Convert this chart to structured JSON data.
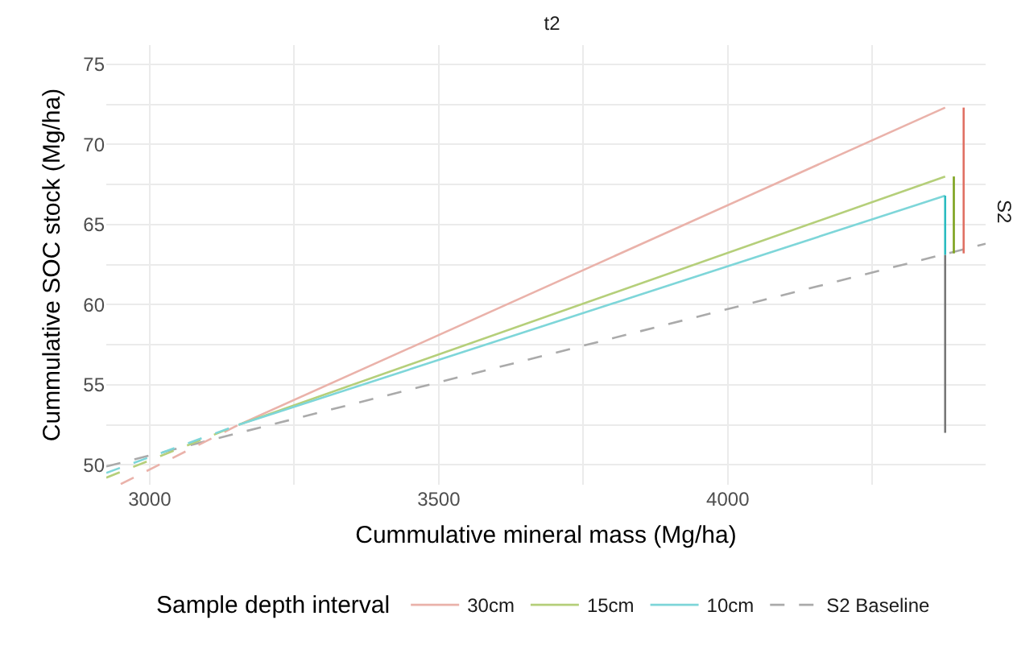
{
  "chart_data": {
    "type": "line",
    "title": "t2",
    "xlabel": "Cummulative mineral mass (Mg/ha)",
    "ylabel": "Cummulative SOC stock (Mg/ha)",
    "legend_title": "Sample depth interval",
    "annotations": [
      "S2"
    ],
    "series": [
      {
        "name": "30cm",
        "color": "#eab2aa",
        "line_style": "solid",
        "x": [
          3154,
          4376
        ],
        "values": [
          52.5,
          72.3
        ]
      },
      {
        "name": "15cm",
        "color": "#b5cf7a",
        "line_style": "solid",
        "x": [
          3154,
          4376
        ],
        "values": [
          52.5,
          68.0
        ]
      },
      {
        "name": "10cm",
        "color": "#7ed6d9",
        "line_style": "solid",
        "x": [
          3154,
          4376
        ],
        "values": [
          52.5,
          66.8
        ]
      },
      {
        "name": "S2 Baseline",
        "color": "#aaaaaa",
        "line_style": "dashed",
        "x": [
          2925,
          4446
        ],
        "values": [
          49.9,
          63.8
        ]
      },
      {
        "color": "#eab2aa",
        "line_style": "dashed",
        "x": [
          2950,
          3154
        ],
        "values": [
          48.8,
          52.5
        ]
      },
      {
        "color": "#b5cf7a",
        "line_style": "dashed",
        "x": [
          2925,
          3154
        ],
        "values": [
          49.2,
          52.5
        ]
      },
      {
        "color": "#7ed6d9",
        "line_style": "dashed",
        "x": [
          2925,
          3154
        ],
        "values": [
          49.5,
          52.5
        ]
      },
      {
        "color": "#e07063",
        "line_style": "solid",
        "x": [
          4408,
          4408
        ],
        "values": [
          63.2,
          72.3
        ]
      },
      {
        "color": "#7ca21c",
        "line_style": "solid",
        "x": [
          4391,
          4391
        ],
        "values": [
          63.2,
          68.0
        ]
      },
      {
        "color": "#2bbcc0",
        "line_style": "solid",
        "x": [
          4376,
          4376
        ],
        "values": [
          63.1,
          66.8
        ]
      },
      {
        "color": "#777777",
        "line_style": "solid",
        "x": [
          4376,
          4376
        ],
        "values": [
          52.0,
          63.1
        ]
      }
    ],
    "xlim": [
      2925,
      4446
    ],
    "xticks": [
      3000,
      {
        "value": 3250,
        "label": null
      },
      3500,
      {
        "value": 3750,
        "label": null
      },
      4000,
      {
        "value": 4250,
        "label": null
      }
    ],
    "ylim": [
      48.76,
      76.2
    ],
    "yticks": [
      50,
      {
        "value": 52.5,
        "label": null
      },
      55,
      {
        "value": 57.5,
        "label": null
      },
      60,
      {
        "value": 62.5,
        "label": null
      },
      65,
      {
        "value": 67.5,
        "label": null
      },
      70,
      {
        "value": 72.5,
        "label": null
      },
      75
    ],
    "grid": true,
    "legend": "bottom",
    "marker": "none"
  }
}
